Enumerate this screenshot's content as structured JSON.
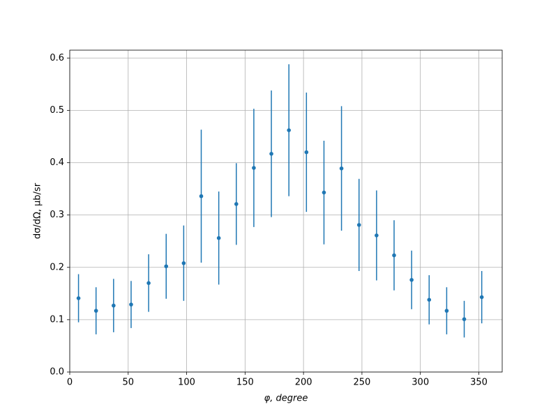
{
  "chart_data": {
    "type": "errorbar",
    "x_label": "φ, degree",
    "y_label": "dσ/dΩ, μb/sr",
    "x": [
      7.5,
      22.5,
      37.5,
      52.5,
      67.5,
      82.5,
      97.5,
      112.5,
      127.5,
      142.5,
      157.5,
      172.5,
      187.5,
      202.5,
      217.5,
      232.5,
      247.5,
      262.5,
      277.5,
      292.5,
      307.5,
      322.5,
      337.5,
      352.5
    ],
    "values": [
      0.141,
      0.117,
      0.127,
      0.129,
      0.17,
      0.202,
      0.208,
      0.336,
      0.256,
      0.321,
      0.39,
      0.417,
      0.462,
      0.42,
      0.343,
      0.389,
      0.281,
      0.261,
      0.223,
      0.176,
      0.138,
      0.117,
      0.101,
      0.143
    ],
    "errors": [
      0.046,
      0.045,
      0.051,
      0.045,
      0.055,
      0.062,
      0.072,
      0.127,
      0.089,
      0.078,
      0.113,
      0.121,
      0.126,
      0.114,
      0.099,
      0.119,
      0.088,
      0.086,
      0.067,
      0.056,
      0.047,
      0.045,
      0.035,
      0.05
    ],
    "color": "#1f77b4",
    "xlim": [
      0,
      370
    ],
    "ylim": [
      0,
      0.615
    ],
    "xticks": [
      0,
      50,
      100,
      150,
      200,
      250,
      300,
      350
    ],
    "yticks": [
      {
        "value": 0,
        "label": "0.0"
      },
      0.1,
      0.2,
      0.3,
      0.4,
      0.5,
      0.6
    ],
    "grid": true
  }
}
